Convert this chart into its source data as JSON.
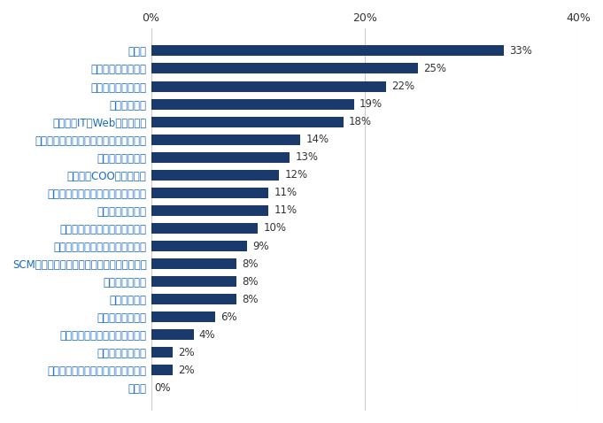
{
  "categories": [
    "その他",
    "技術系（化学・素材・食品・衣料）",
    "クリエイティブ系",
    "技術・専門職系（メディカル）",
    "サービス・流通系",
    "金融系専門職",
    "不動産系専門職",
    "SCM・ロジスティクス・物流・購買・貿易系",
    "法務・コンプライアンス・知財系",
    "技術系（電気・電子・半導体）",
    "マーケティング系",
    "技術系（機械・メカトロ・自動車）",
    "経営者・COO・経営幹部",
    "コンサルタント系",
    "技術系（建築・設備・土木・プラント）",
    "技術系（IT・Web・通信系）",
    "人事・総務系",
    "経営企画・事業企画",
    "経理・財務・会計系",
    "営業系"
  ],
  "values": [
    0,
    2,
    2,
    4,
    6,
    8,
    8,
    8,
    9,
    10,
    11,
    11,
    12,
    13,
    14,
    18,
    19,
    22,
    25,
    33
  ],
  "bar_color": "#1a3a6b",
  "label_color_left": "#1a6bbf",
  "label_color_right": "#333333",
  "background_color": "#ffffff",
  "xlim": [
    0,
    40
  ],
  "xticks": [
    0,
    20,
    40
  ],
  "xtick_labels": [
    "0%",
    "20%",
    "40%"
  ],
  "figsize": [
    6.81,
    4.78
  ],
  "dpi": 100,
  "bar_height": 0.6,
  "font_size_labels": 8.5,
  "font_size_ticks": 9
}
